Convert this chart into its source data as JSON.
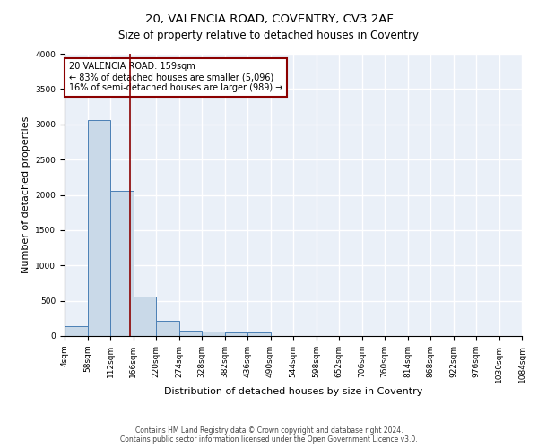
{
  "title1": "20, VALENCIA ROAD, COVENTRY, CV3 2AF",
  "title2": "Size of property relative to detached houses in Coventry",
  "xlabel": "Distribution of detached houses by size in Coventry",
  "ylabel": "Number of detached properties",
  "bin_edges": [
    4,
    58,
    112,
    166,
    220,
    274,
    328,
    382,
    436,
    490,
    544,
    598,
    652,
    706,
    760,
    814,
    868,
    922,
    976,
    1030,
    1084
  ],
  "bar_heights": [
    140,
    3060,
    2060,
    560,
    220,
    80,
    60,
    50,
    50,
    0,
    0,
    0,
    0,
    0,
    0,
    0,
    0,
    0,
    0,
    0
  ],
  "bar_color": "#c9d9e8",
  "bar_edge_color": "#4a7fb5",
  "property_size": 159,
  "vline_color": "#8b0000",
  "annotation_line1": "20 VALENCIA ROAD: 159sqm",
  "annotation_line2": "← 83% of detached houses are smaller (5,096)",
  "annotation_line3": "16% of semi-detached houses are larger (989) →",
  "annotation_box_color": "white",
  "annotation_border_color": "#8b0000",
  "ylim": [
    0,
    4000
  ],
  "yticks": [
    0,
    500,
    1000,
    1500,
    2000,
    2500,
    3000,
    3500,
    4000
  ],
  "background_color": "#eaf0f8",
  "grid_color": "white",
  "footer_text": "Contains HM Land Registry data © Crown copyright and database right 2024.\nContains public sector information licensed under the Open Government Licence v3.0.",
  "title1_fontsize": 9.5,
  "title2_fontsize": 8.5,
  "xlabel_fontsize": 8,
  "ylabel_fontsize": 8,
  "tick_fontsize": 6.5,
  "annotation_fontsize": 7,
  "footer_fontsize": 5.5
}
